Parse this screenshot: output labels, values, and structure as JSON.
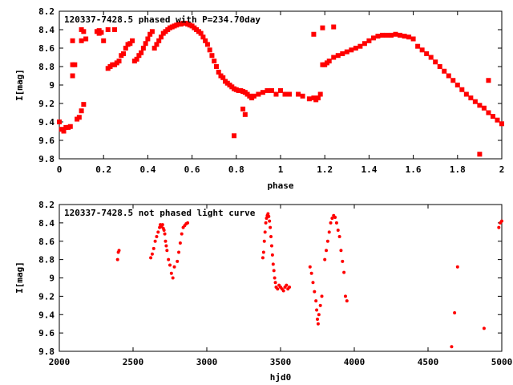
{
  "chart_data": [
    {
      "type": "scatter",
      "title": "120337-7428.5 phased with P=234.70day",
      "xlabel": "phase",
      "ylabel": "I[mag]",
      "xlim": [
        0,
        2
      ],
      "ylim": [
        8.2,
        9.8
      ],
      "y_inverted": true,
      "xticks": [
        0,
        0.2,
        0.4,
        0.6,
        0.8,
        1,
        1.2,
        1.4,
        1.6,
        1.8,
        2
      ],
      "xtick_labels": [
        "0",
        "0.2",
        "0.4",
        "0.6",
        "0.8",
        "1",
        "1.2",
        "1.4",
        "1.6",
        "1.8",
        "2"
      ],
      "yticks": [
        8.2,
        8.4,
        8.6,
        8.8,
        9,
        9.2,
        9.4,
        9.6,
        9.8
      ],
      "ytick_labels": [
        "8.2",
        "8.4",
        "8.6",
        "8.8",
        "9",
        "9.2",
        "9.4",
        "9.6",
        "9.8"
      ],
      "grid": false,
      "marker_color": "#ff0000",
      "series": [
        {
          "x": [
            0.0,
            0.01,
            0.02,
            0.03,
            0.04,
            0.05,
            0.06,
            0.06,
            0.07,
            0.08,
            0.09,
            0.1,
            0.1,
            0.11,
            0.12,
            0.17,
            0.18,
            0.19,
            0.2,
            0.22,
            0.23,
            0.24,
            0.25,
            0.26,
            0.27,
            0.28,
            0.29,
            0.3,
            0.31,
            0.32,
            0.33,
            0.34,
            0.35,
            0.36,
            0.37,
            0.38,
            0.39,
            0.4,
            0.41,
            0.42,
            0.43,
            0.44,
            0.45,
            0.46,
            0.47,
            0.48,
            0.49,
            0.5,
            0.51,
            0.52,
            0.53,
            0.54,
            0.55,
            0.56,
            0.57,
            0.58,
            0.59,
            0.6,
            0.61,
            0.62,
            0.63,
            0.64,
            0.65,
            0.66,
            0.67,
            0.68,
            0.69,
            0.7,
            0.71,
            0.72,
            0.73,
            0.74,
            0.75,
            0.76,
            0.77,
            0.78,
            0.79,
            0.8,
            0.81,
            0.82,
            0.83,
            0.84,
            0.85,
            0.86,
            0.87,
            0.88,
            0.9,
            0.92,
            0.94,
            0.96,
            0.98,
            1.0,
            1.02,
            1.04,
            1.08,
            1.1,
            1.13,
            1.15,
            1.16,
            1.17,
            1.18,
            1.19,
            1.2,
            1.21,
            1.22,
            1.24,
            1.26,
            1.28,
            1.3,
            1.32,
            1.34,
            1.36,
            1.38,
            1.4,
            1.42,
            1.44,
            1.46,
            1.48,
            1.5,
            1.52,
            1.54,
            1.56,
            1.58,
            1.6,
            1.62,
            1.64,
            1.66,
            1.68,
            1.7,
            1.72,
            1.74,
            1.76,
            1.78,
            1.8,
            1.82,
            1.84,
            1.86,
            1.88,
            1.9,
            1.92,
            1.94,
            1.96,
            1.98,
            2.0,
            0.79,
            0.83,
            0.84,
            1.15,
            1.19,
            1.24,
            0.18,
            0.22,
            0.25,
            0.06,
            0.1,
            0.11,
            1.9,
            1.94
          ],
          "y": [
            9.4,
            9.48,
            9.5,
            9.46,
            9.46,
            9.45,
            8.9,
            8.78,
            8.78,
            9.37,
            9.35,
            9.28,
            8.52,
            9.21,
            8.5,
            8.42,
            8.41,
            8.43,
            8.52,
            8.82,
            8.8,
            8.78,
            8.78,
            8.76,
            8.74,
            8.68,
            8.66,
            8.6,
            8.56,
            8.55,
            8.52,
            8.74,
            8.72,
            8.68,
            8.65,
            8.6,
            8.55,
            8.5,
            8.45,
            8.42,
            8.6,
            8.56,
            8.52,
            8.48,
            8.44,
            8.42,
            8.4,
            8.38,
            8.37,
            8.36,
            8.35,
            8.34,
            8.34,
            8.33,
            8.33,
            8.34,
            8.35,
            8.36,
            8.38,
            8.4,
            8.42,
            8.44,
            8.48,
            8.52,
            8.56,
            8.62,
            8.68,
            8.74,
            8.8,
            8.86,
            8.9,
            8.92,
            8.96,
            8.98,
            9.0,
            9.02,
            9.04,
            9.05,
            9.06,
            9.06,
            9.07,
            9.08,
            9.1,
            9.12,
            9.14,
            9.12,
            9.1,
            9.08,
            9.06,
            9.06,
            9.1,
            9.06,
            9.1,
            9.1,
            9.1,
            9.12,
            9.15,
            9.14,
            9.16,
            9.14,
            9.1,
            8.78,
            8.78,
            8.76,
            8.74,
            8.7,
            8.68,
            8.66,
            8.64,
            8.62,
            8.6,
            8.58,
            8.55,
            8.52,
            8.49,
            8.47,
            8.46,
            8.46,
            8.46,
            8.45,
            8.46,
            8.47,
            8.48,
            8.5,
            8.58,
            8.62,
            8.66,
            8.7,
            8.75,
            8.8,
            8.85,
            8.9,
            8.95,
            9.0,
            9.05,
            9.1,
            9.14,
            9.18,
            9.22,
            9.25,
            9.3,
            9.34,
            9.38,
            9.42,
            9.55,
            9.26,
            9.32,
            8.45,
            8.38,
            8.37,
            8.44,
            8.4,
            8.4,
            8.52,
            8.4,
            8.42,
            9.75,
            8.95
          ],
          "hint": "min"
        }
      ]
    },
    {
      "type": "scatter",
      "title": "120337-7428.5 not phased light curve",
      "xlabel": "hjd0",
      "ylabel": "I[mag]",
      "xlim": [
        2000,
        5000
      ],
      "ylim": [
        8.2,
        9.8
      ],
      "y_inverted": true,
      "xticks": [
        2000,
        2500,
        3000,
        3500,
        4000,
        4500,
        5000
      ],
      "xtick_labels": [
        "2000",
        "2500",
        "3000",
        "3500",
        "4000",
        "4500",
        "5000"
      ],
      "yticks": [
        8.2,
        8.4,
        8.6,
        8.8,
        9,
        9.2,
        9.4,
        9.6,
        9.8
      ],
      "ytick_labels": [
        "8.2",
        "8.4",
        "8.6",
        "8.8",
        "9",
        "9.2",
        "9.4",
        "9.6",
        "9.8"
      ],
      "grid": false,
      "marker_color": "#ff0000",
      "series": [
        {
          "x": [
            2395,
            2400,
            2405,
            2620,
            2630,
            2640,
            2650,
            2660,
            2670,
            2680,
            2685,
            2690,
            2695,
            2700,
            2705,
            2710,
            2715,
            2720,
            2725,
            2730,
            2740,
            2750,
            2760,
            2770,
            2780,
            2800,
            2810,
            2820,
            2830,
            2840,
            2850,
            2860,
            2870,
            3380,
            3385,
            3390,
            3395,
            3400,
            3405,
            3410,
            3415,
            3420,
            3425,
            3430,
            3435,
            3440,
            3445,
            3450,
            3455,
            3460,
            3465,
            3470,
            3480,
            3490,
            3500,
            3510,
            3520,
            3530,
            3540,
            3550,
            3560,
            3700,
            3710,
            3720,
            3730,
            3740,
            3745,
            3750,
            3755,
            3760,
            3770,
            3780,
            3800,
            3810,
            3820,
            3830,
            3840,
            3850,
            3860,
            3870,
            3880,
            3890,
            3900,
            3910,
            3920,
            3930,
            3940,
            3950,
            4660,
            4680,
            4700,
            4880,
            4980,
            4990,
            5000
          ],
          "y": [
            8.8,
            8.72,
            8.7,
            8.78,
            8.74,
            8.68,
            8.6,
            8.55,
            8.5,
            8.45,
            8.42,
            8.44,
            8.43,
            8.42,
            8.46,
            8.48,
            8.52,
            8.6,
            8.65,
            8.7,
            8.8,
            8.86,
            8.95,
            9.0,
            8.88,
            8.82,
            8.72,
            8.62,
            8.52,
            8.45,
            8.43,
            8.41,
            8.4,
            8.78,
            8.72,
            8.6,
            8.5,
            8.4,
            8.35,
            8.32,
            8.3,
            8.33,
            8.38,
            8.45,
            8.55,
            8.65,
            8.75,
            8.85,
            8.92,
            9.0,
            9.05,
            9.1,
            9.12,
            9.08,
            9.1,
            9.12,
            9.14,
            9.1,
            9.08,
            9.12,
            9.1,
            8.88,
            8.95,
            9.05,
            9.15,
            9.25,
            9.35,
            9.45,
            9.5,
            9.4,
            9.3,
            9.2,
            8.8,
            8.7,
            8.6,
            8.5,
            8.4,
            8.35,
            8.32,
            8.34,
            8.4,
            8.48,
            8.55,
            8.7,
            8.82,
            8.94,
            9.2,
            9.25,
            9.75,
            9.38,
            8.88,
            9.55,
            8.45,
            8.4,
            8.38
          ]
        }
      ]
    }
  ]
}
